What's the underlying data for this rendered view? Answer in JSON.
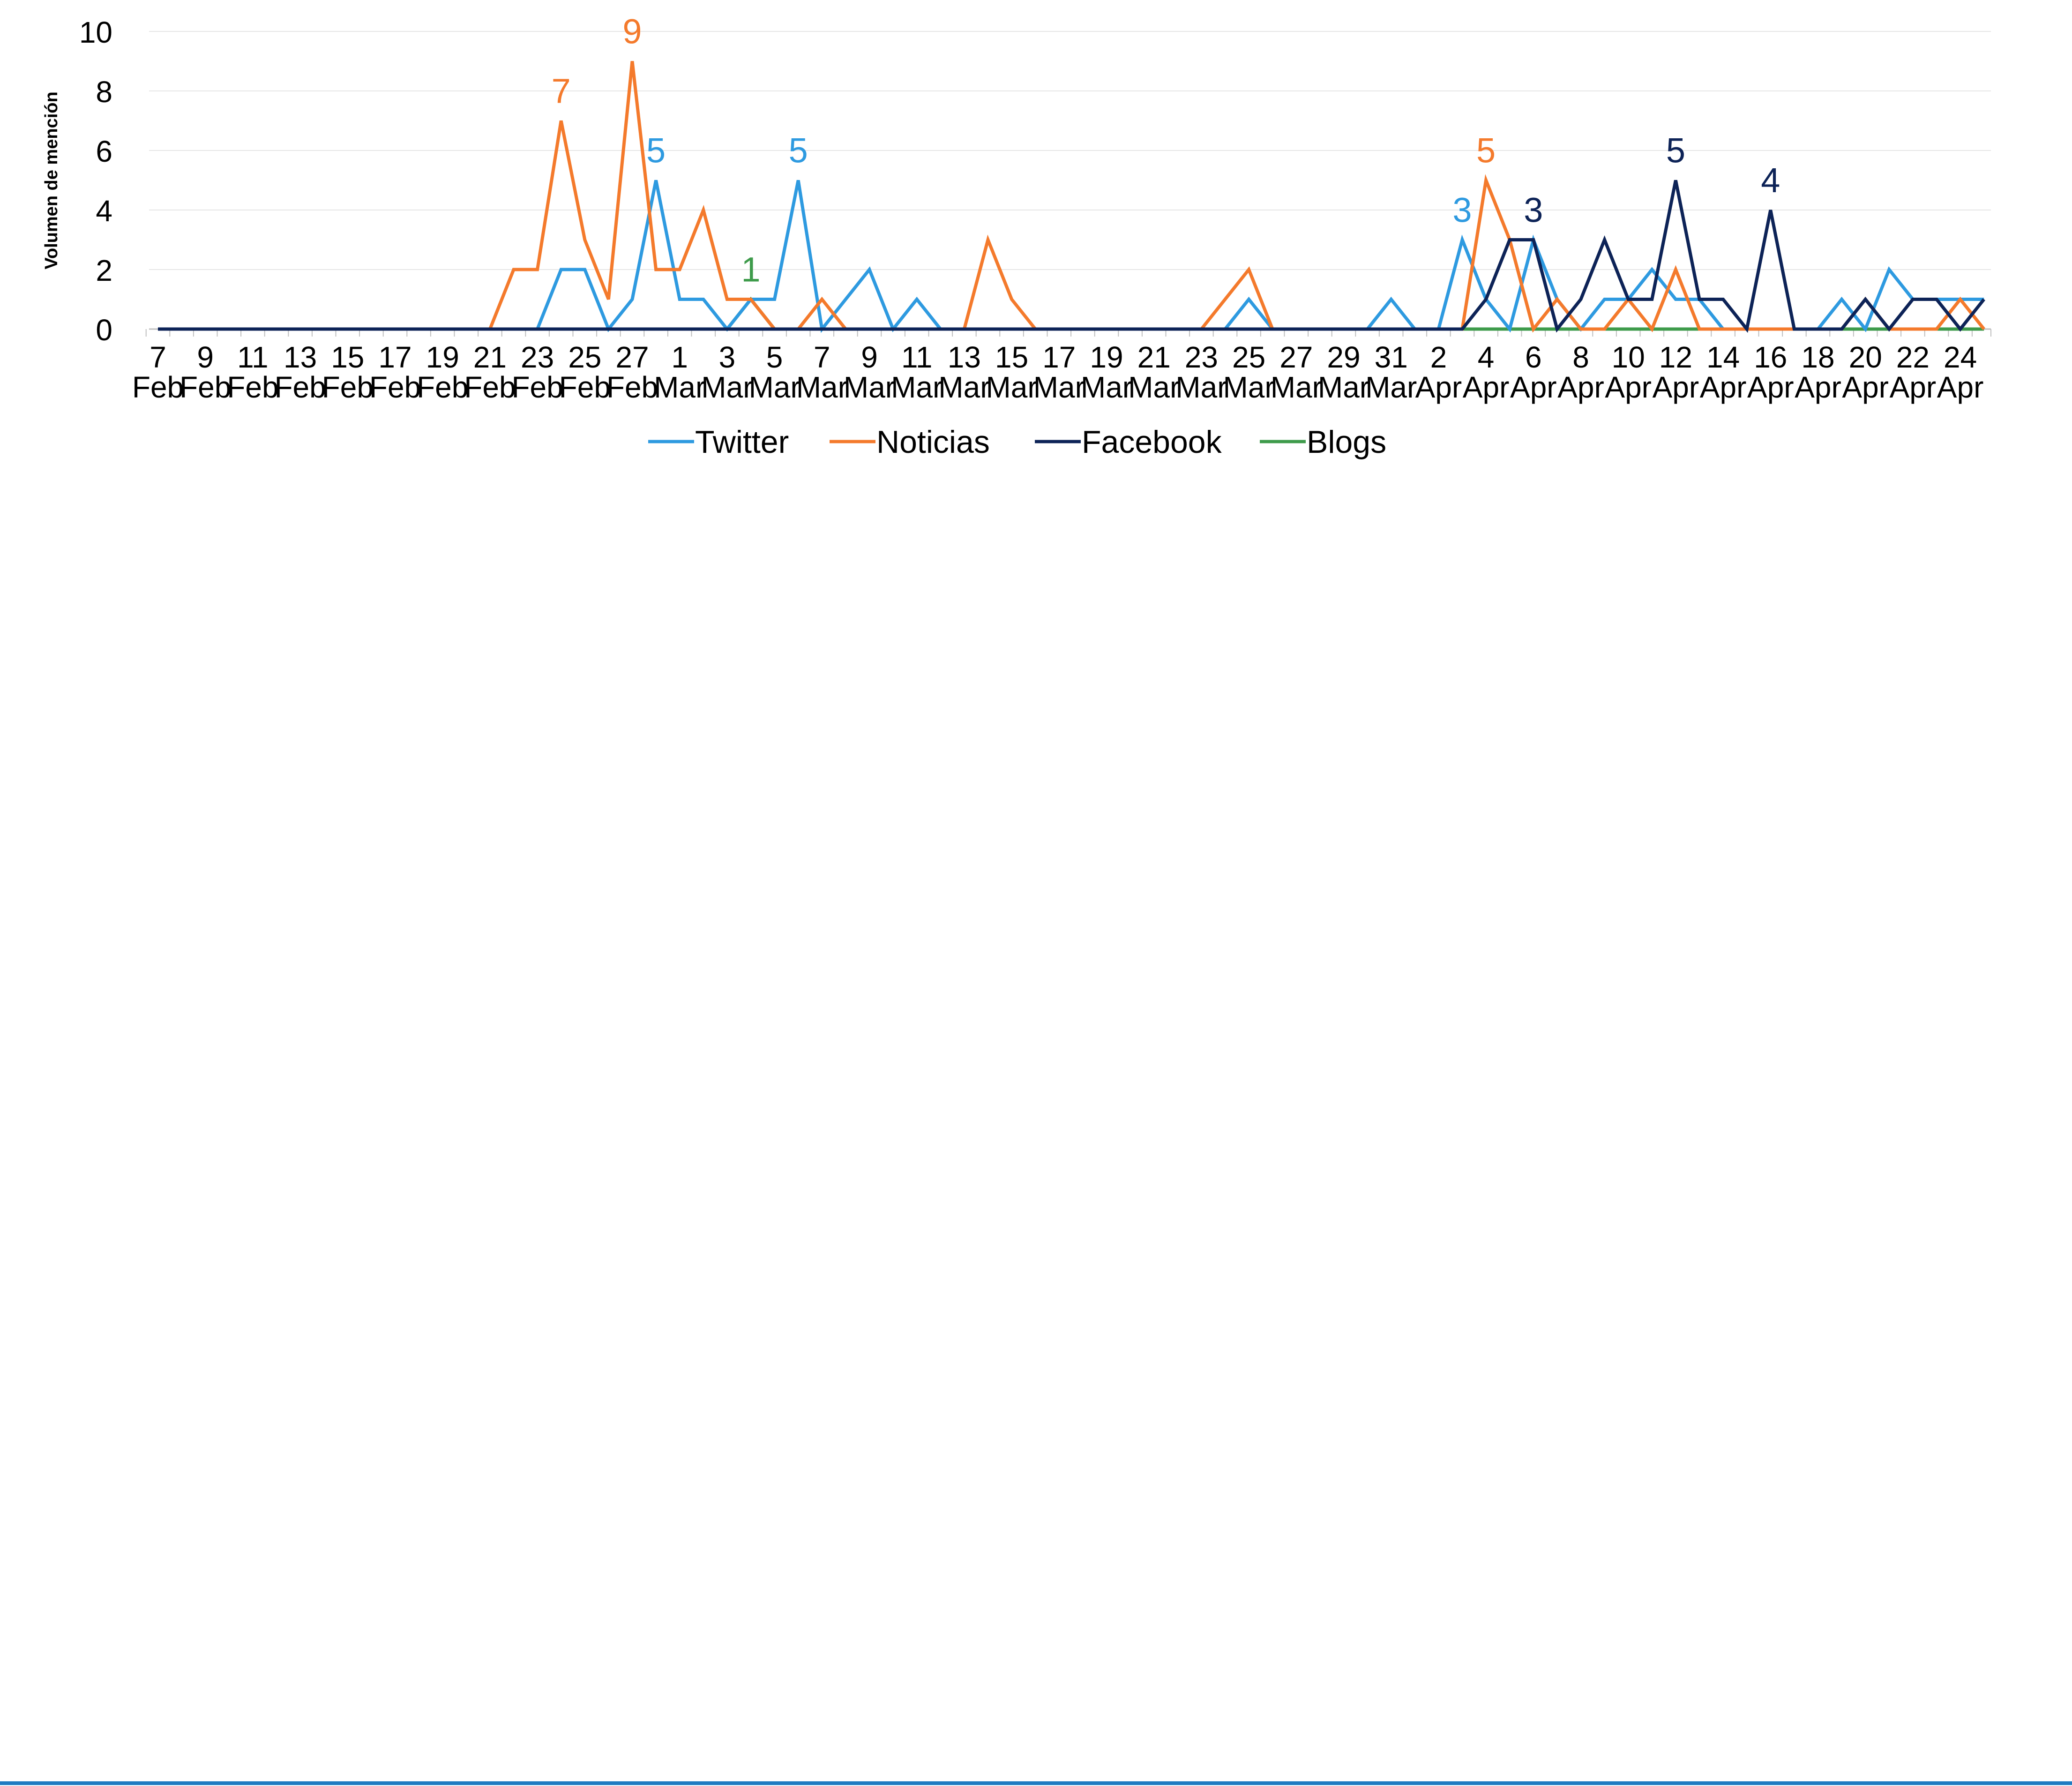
{
  "chart_data": {
    "type": "line",
    "ylabel": "Volumen de mención",
    "xlabel": "",
    "ylim": [
      0,
      10
    ],
    "yticks": [
      0,
      2,
      4,
      6,
      8,
      10
    ],
    "grid": "horizontal",
    "legend_position": "bottom",
    "x_tick_labels": [
      {
        "day": "7",
        "month": "Feb"
      },
      {
        "day": "9",
        "month": "Feb"
      },
      {
        "day": "11",
        "month": "Feb"
      },
      {
        "day": "13",
        "month": "Feb"
      },
      {
        "day": "15",
        "month": "Feb"
      },
      {
        "day": "17",
        "month": "Feb"
      },
      {
        "day": "19",
        "month": "Feb"
      },
      {
        "day": "21",
        "month": "Feb"
      },
      {
        "day": "23",
        "month": "Feb"
      },
      {
        "day": "25",
        "month": "Feb"
      },
      {
        "day": "27",
        "month": "Feb"
      },
      {
        "day": "1",
        "month": "Mar"
      },
      {
        "day": "3",
        "month": "Mar"
      },
      {
        "day": "5",
        "month": "Mar"
      },
      {
        "day": "7",
        "month": "Mar"
      },
      {
        "day": "9",
        "month": "Mar"
      },
      {
        "day": "11",
        "month": "Mar"
      },
      {
        "day": "13",
        "month": "Mar"
      },
      {
        "day": "15",
        "month": "Mar"
      },
      {
        "day": "17",
        "month": "Mar"
      },
      {
        "day": "19",
        "month": "Mar"
      },
      {
        "day": "21",
        "month": "Mar"
      },
      {
        "day": "23",
        "month": "Mar"
      },
      {
        "day": "25",
        "month": "Mar"
      },
      {
        "day": "27",
        "month": "Mar"
      },
      {
        "day": "29",
        "month": "Mar"
      },
      {
        "day": "31",
        "month": "Mar"
      },
      {
        "day": "2",
        "month": "Apr"
      },
      {
        "day": "4",
        "month": "Apr"
      },
      {
        "day": "6",
        "month": "Apr"
      },
      {
        "day": "8",
        "month": "Apr"
      },
      {
        "day": "10",
        "month": "Apr"
      },
      {
        "day": "12",
        "month": "Apr"
      },
      {
        "day": "14",
        "month": "Apr"
      },
      {
        "day": "16",
        "month": "Apr"
      },
      {
        "day": "18",
        "month": "Apr"
      },
      {
        "day": "20",
        "month": "Apr"
      },
      {
        "day": "22",
        "month": "Apr"
      },
      {
        "day": "24",
        "month": "Apr"
      }
    ],
    "x_start": "Feb 7",
    "x_end": "Apr 25",
    "series": [
      {
        "name": "Twitter",
        "color": "#2e9ae0",
        "values": [
          0,
          0,
          0,
          0,
          0,
          0,
          0,
          0,
          0,
          0,
          0,
          0,
          0,
          0,
          0,
          0,
          0,
          2,
          2,
          0,
          1,
          5,
          1,
          1,
          0,
          1,
          1,
          5,
          0,
          1,
          2,
          0,
          1,
          0,
          0,
          0,
          0,
          0,
          0,
          0,
          0,
          0,
          0,
          0,
          0,
          0,
          1,
          0,
          0,
          0,
          0,
          0,
          1,
          0,
          0,
          3,
          1,
          0,
          3,
          1,
          0,
          1,
          1,
          2,
          1,
          1,
          0,
          0,
          0,
          0,
          0,
          1,
          0,
          2,
          1,
          1,
          1,
          1
        ],
        "labels": [
          {
            "index": 21,
            "text": "5"
          },
          {
            "index": 27,
            "text": "5"
          },
          {
            "index": 55,
            "text": "3"
          }
        ]
      },
      {
        "name": "Noticias",
        "color": "#f47a2c",
        "values": [
          0,
          0,
          0,
          0,
          0,
          0,
          0,
          0,
          0,
          0,
          0,
          0,
          0,
          0,
          0,
          2,
          2,
          7,
          3,
          1,
          9,
          2,
          2,
          4,
          1,
          1,
          0,
          0,
          1,
          0,
          0,
          0,
          0,
          0,
          0,
          3,
          1,
          0,
          0,
          0,
          0,
          0,
          0,
          0,
          0,
          1,
          2,
          0,
          0,
          0,
          0,
          0,
          0,
          0,
          0,
          0,
          5,
          3,
          0,
          1,
          0,
          0,
          1,
          0,
          2,
          0,
          0,
          0,
          0,
          0,
          0,
          0,
          1,
          0,
          0,
          0,
          1,
          0
        ],
        "labels": [
          {
            "index": 17,
            "text": "7"
          },
          {
            "index": 20,
            "text": "9"
          },
          {
            "index": 56,
            "text": "5"
          }
        ]
      },
      {
        "name": "Facebook",
        "color": "#0d2357",
        "values": [
          0,
          0,
          0,
          0,
          0,
          0,
          0,
          0,
          0,
          0,
          0,
          0,
          0,
          0,
          0,
          0,
          0,
          0,
          0,
          0,
          0,
          0,
          0,
          0,
          0,
          0,
          0,
          0,
          0,
          0,
          0,
          0,
          0,
          0,
          0,
          0,
          0,
          0,
          0,
          0,
          0,
          0,
          0,
          0,
          0,
          0,
          0,
          0,
          0,
          0,
          0,
          0,
          0,
          0,
          0,
          0,
          1,
          3,
          3,
          0,
          1,
          3,
          1,
          1,
          5,
          1,
          1,
          0,
          4,
          0,
          0,
          0,
          1,
          0,
          1,
          1,
          0,
          1
        ],
        "labels": [
          {
            "index": 58,
            "text": "3"
          },
          {
            "index": 64,
            "text": "5"
          },
          {
            "index": 68,
            "text": "4"
          }
        ]
      },
      {
        "name": "Blogs",
        "color": "#3e9b4b",
        "values": [
          0,
          0,
          0,
          0,
          0,
          0,
          0,
          0,
          0,
          0,
          0,
          0,
          0,
          0,
          0,
          0,
          0,
          0,
          0,
          0,
          0,
          0,
          0,
          0,
          0,
          1,
          0,
          0,
          0,
          0,
          0,
          0,
          0,
          0,
          0,
          0,
          0,
          0,
          0,
          0,
          0,
          0,
          0,
          0,
          0,
          0,
          0,
          0,
          0,
          0,
          0,
          0,
          0,
          0,
          0,
          0,
          0,
          0,
          0,
          0,
          0,
          0,
          0,
          0,
          0,
          0,
          0,
          0,
          0,
          0,
          0,
          0,
          0,
          0,
          0,
          0,
          0,
          0
        ],
        "labels": [
          {
            "index": 25,
            "text": "1"
          }
        ]
      }
    ]
  },
  "styles": {
    "grid_color": "#e6e6e6",
    "axis_color": "#bfbfbf",
    "footer_rule_color": "#1f7bc1"
  }
}
